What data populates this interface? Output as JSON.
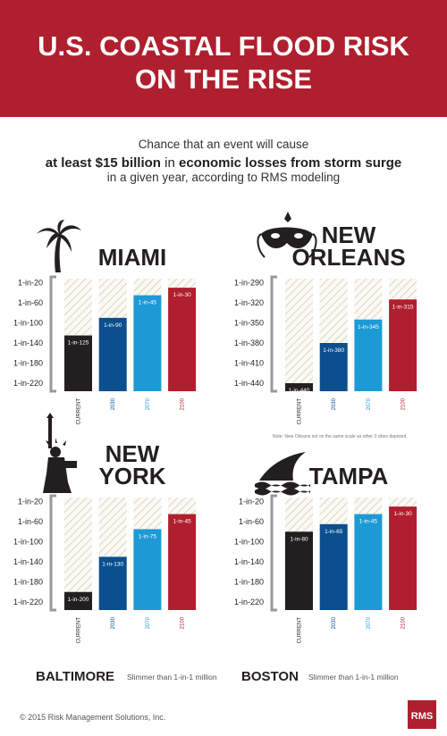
{
  "header": {
    "title": [
      "U.S. COASTAL FLOOD RISK",
      "ON THE RISE"
    ],
    "subtitle": {
      "line1": "Chance that an event will cause",
      "line2": [
        "at least $15 billion",
        "in",
        "economic losses from storm surge"
      ],
      "line3": "in a given year, according to RMS modeling"
    }
  },
  "chart_data": [
    {
      "type": "bar",
      "title": [
        "MIAMI"
      ],
      "categories": [
        "CURRENT",
        "2030",
        "2070",
        "2100"
      ],
      "values": [
        125,
        90,
        45,
        30
      ],
      "value_labels": [
        "1-in-125",
        "1-in-90",
        "1-in-45",
        "1-in-30"
      ],
      "colors": [
        "#231f20",
        "#0b4f8e",
        "#1d9ad6",
        "#af1f2d"
      ],
      "ylim": [
        236,
        12
      ],
      "yticks": [
        {
          "value": 20,
          "label": "1-in-20"
        },
        {
          "value": 60,
          "label": "1-in-60"
        },
        {
          "value": 100,
          "label": "1-in-100"
        },
        {
          "value": 140,
          "label": "1-in-140"
        },
        {
          "value": 180,
          "label": "1-in-180"
        },
        {
          "value": 220,
          "label": "1-in-220"
        }
      ]
    },
    {
      "type": "bar",
      "title": [
        "NEW",
        "ORLEANS"
      ],
      "categories": [
        "CURRENT",
        "2030",
        "2070",
        "2100"
      ],
      "values": [
        440,
        380,
        345,
        315
      ],
      "value_labels": [
        "1-in-440",
        "1-in-380",
        "1-in-345",
        "1-in-315"
      ],
      "colors": [
        "#231f20",
        "#0b4f8e",
        "#1d9ad6",
        "#af1f2d"
      ],
      "ylim": [
        452,
        284
      ],
      "yticks": [
        {
          "value": 290,
          "label": "1-in-290"
        },
        {
          "value": 320,
          "label": "1-in-320"
        },
        {
          "value": 350,
          "label": "1-in-350"
        },
        {
          "value": 380,
          "label": "1-in-380"
        },
        {
          "value": 410,
          "label": "1-in-410"
        },
        {
          "value": 440,
          "label": "1-in-440"
        }
      ],
      "note": "Note: New Orleans not on the same scale as other 3 cities depicted."
    },
    {
      "type": "bar",
      "title": [
        "NEW",
        "YORK"
      ],
      "categories": [
        "CURRENT",
        "2030",
        "2070",
        "2100"
      ],
      "values": [
        200,
        130,
        75,
        45
      ],
      "value_labels": [
        "1-in-200",
        "1-in-130",
        "1-in-75",
        "1-in-45"
      ],
      "colors": [
        "#231f20",
        "#0b4f8e",
        "#1d9ad6",
        "#af1f2d"
      ],
      "ylim": [
        236,
        12
      ],
      "yticks": [
        {
          "value": 20,
          "label": "1-in-20"
        },
        {
          "value": 60,
          "label": "1-in-60"
        },
        {
          "value": 100,
          "label": "1-in-100"
        },
        {
          "value": 140,
          "label": "1-in-140"
        },
        {
          "value": 180,
          "label": "1-in-180"
        },
        {
          "value": 220,
          "label": "1-in-220"
        }
      ]
    },
    {
      "type": "bar",
      "title": [
        "TAMPA"
      ],
      "categories": [
        "CURRENT",
        "2030",
        "2070",
        "2100"
      ],
      "values": [
        80,
        65,
        45,
        30
      ],
      "value_labels": [
        "1-in-80",
        "1-in-65",
        "1-in-45",
        "1-in-30"
      ],
      "colors": [
        "#231f20",
        "#0b4f8e",
        "#1d9ad6",
        "#af1f2d"
      ],
      "ylim": [
        236,
        12
      ],
      "yticks": [
        {
          "value": 20,
          "label": "1-in-20"
        },
        {
          "value": 60,
          "label": "1-in-60"
        },
        {
          "value": 100,
          "label": "1-in-100"
        },
        {
          "value": 140,
          "label": "1-in-140"
        },
        {
          "value": 180,
          "label": "1-in-180"
        },
        {
          "value": 220,
          "label": "1-in-220"
        }
      ]
    }
  ],
  "other_cities": [
    {
      "name": "BALTIMORE",
      "risk": "Slimmer than 1-in-1 million"
    },
    {
      "name": "BOSTON",
      "risk": "Slimmer than 1-in-1 million"
    }
  ],
  "footer": {
    "copyright": "© 2015 Risk Management Solutions, Inc.",
    "logo": "RMS"
  }
}
